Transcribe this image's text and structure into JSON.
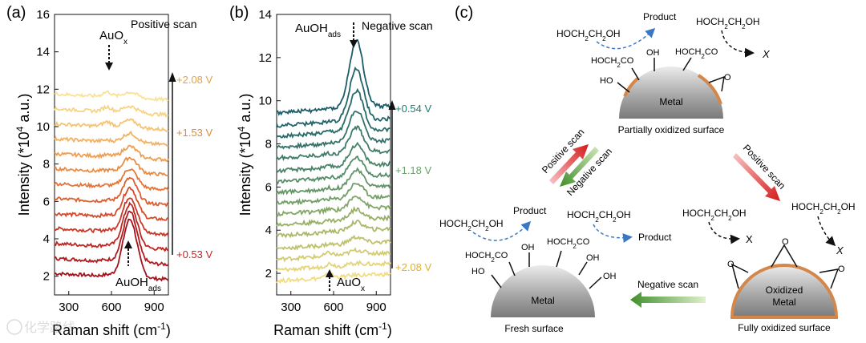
{
  "chart_data": [
    {
      "panel": "(a)",
      "type": "line",
      "xlabel": "Raman shift (cm-1)",
      "ylabel": "Intensity (*10^4 a.u.)",
      "xlim": [
        200,
        1000
      ],
      "ylim": [
        1,
        16
      ],
      "xticks": [
        300,
        600,
        900
      ],
      "yticks": [
        2,
        4,
        6,
        8,
        10,
        12,
        14,
        16
      ],
      "scan_label": "Positive scan",
      "peak_labels": {
        "top": "AuO",
        "top_sub": "x",
        "bottom": "AuOH",
        "bottom_sub": "ads"
      },
      "potential_labels": [
        "+2.08 V",
        "+1.53 V",
        "+0.53 V"
      ],
      "potential_colors": [
        "#e8a23a",
        "#e8a23a",
        "#cc2222"
      ],
      "num_spectra": 13,
      "baselines": [
        2.0,
        2.8,
        3.6,
        4.4,
        5.2,
        6.0,
        6.8,
        7.6,
        8.4,
        9.2,
        10.0,
        10.8,
        11.6
      ],
      "peak_center": 730,
      "peak_heights": [
        3.1,
        2.7,
        2.3,
        1.9,
        1.6,
        1.3,
        1.0,
        0.8,
        0.6,
        0.5,
        0.4,
        0.35,
        0.3
      ],
      "colors_from_bottom": [
        "#a4121c",
        "#b01c20",
        "#bd2723",
        "#c93826",
        "#d44a2a",
        "#dc5f2f",
        "#e37638",
        "#e98c44",
        "#ee9f52",
        "#f2b263",
        "#f5c474",
        "#f7d485",
        "#f9e296"
      ]
    },
    {
      "panel": "(b)",
      "type": "line",
      "xlabel": "Raman shift (cm-1)",
      "ylabel": "Intensity (*10^4 a.u.)",
      "xlim": [
        200,
        1000
      ],
      "ylim": [
        1,
        14
      ],
      "xticks": [
        300,
        600,
        900
      ],
      "yticks": [
        2,
        4,
        6,
        8,
        10,
        12,
        14
      ],
      "scan_label": "Negative scan",
      "peak_labels": {
        "top": "AuOH",
        "top_sub": "ads",
        "bottom": "AuO",
        "bottom_sub": "x"
      },
      "potential_labels": [
        "+0.54 V",
        "+1.18 V",
        "+2.08 V"
      ],
      "potential_colors": [
        "#1d7a6e",
        "#6aa36a",
        "#e0b030"
      ],
      "num_spectra": 16,
      "baselines": [
        1.5,
        2.0,
        2.5,
        3.0,
        3.6,
        4.1,
        4.6,
        5.1,
        5.6,
        6.1,
        6.6,
        7.2,
        7.7,
        8.2,
        8.7,
        9.3
      ],
      "peak_center": 760,
      "peak_heights": [
        0.05,
        0.1,
        0.2,
        0.3,
        0.4,
        0.5,
        0.6,
        0.7,
        0.8,
        0.9,
        1.0,
        1.2,
        1.5,
        1.9,
        2.4,
        3.1
      ],
      "colors_from_bottom": [
        "#f2dc86",
        "#e4d47a",
        "#d2cb72",
        "#bfc26c",
        "#aab968",
        "#96b066",
        "#83a766",
        "#729e67",
        "#639567",
        "#568c68",
        "#4a8368",
        "#3f7b69",
        "#34736a",
        "#2a6b6a",
        "#21646a",
        "#1a5d69"
      ]
    }
  ],
  "diagram": {
    "panel": "(c)",
    "labels": {
      "partially": "Partially oxidized surface",
      "fresh": "Fresh surface",
      "fully": "Fully oxidized surface",
      "metal": "Metal",
      "oxidized_line1": "Oxidized",
      "oxidized_line2": "Metal",
      "positive_scan": "Positive scan",
      "negative_scan": "Negative scan",
      "product": "Product",
      "x_mark": "X"
    }
  },
  "watermark": "化学路线"
}
